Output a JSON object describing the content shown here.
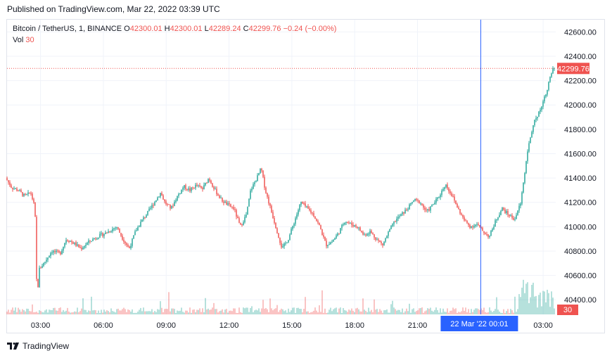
{
  "header": {
    "published": "Published on TradingView.com, Mar 22, 2022 03:39 UTC"
  },
  "legend": {
    "symbol": "Bitcoin / TetherUS, 1, BINANCE",
    "o_label": "O",
    "o_value": "42300.01",
    "h_label": "H",
    "h_value": "42300.01",
    "l_label": "L",
    "l_value": "42289.24",
    "c_label": "C",
    "c_value": "42299.76",
    "change": "−0.24 (−0.00%)",
    "vol_label": "Vol",
    "vol_value": "30"
  },
  "footer": {
    "brand": "TradingView",
    "logo_icon": "tradingview-logo-icon"
  },
  "colors": {
    "up": "#26a69a",
    "down": "#ef5350",
    "grid": "#f0f3fa",
    "crosshair": "#2962ff",
    "price_line": "#ef5350",
    "axis_text": "#131722"
  },
  "chart_data": {
    "type": "candlestick",
    "title": "Bitcoin / TetherUS, 1, BINANCE",
    "ylim": [
      40280,
      42700
    ],
    "y_ticks": [
      "42600.00",
      "42400.00",
      "42200.00",
      "42000.00",
      "41800.00",
      "41600.00",
      "41400.00",
      "41200.00",
      "41000.00",
      "40800.00",
      "40600.00",
      "40400.00"
    ],
    "x_ticks": [
      "03:00",
      "06:00",
      "09:00",
      "12:00",
      "15:00",
      "18:00",
      "21:00",
      "03:00"
    ],
    "x_range_hours": [
      1.4,
      27.6
    ],
    "crosshair_label": "22 Mar '22   00:01",
    "crosshair_hour": 24.02,
    "last_price": 42299.76,
    "last_price_label": "42299.76",
    "volume_last_label": "30",
    "grid": true,
    "price_path": [
      [
        1.4,
        41400
      ],
      [
        1.7,
        41320
      ],
      [
        2.0,
        41300
      ],
      [
        2.3,
        41250
      ],
      [
        2.6,
        41280
      ],
      [
        2.8,
        41150
      ],
      [
        2.9,
        40400
      ],
      [
        3.0,
        40650
      ],
      [
        3.3,
        40720
      ],
      [
        3.6,
        40800
      ],
      [
        4.0,
        40780
      ],
      [
        4.3,
        40900
      ],
      [
        4.7,
        40860
      ],
      [
        5.0,
        40820
      ],
      [
        5.4,
        40880
      ],
      [
        5.8,
        40920
      ],
      [
        6.2,
        40950
      ],
      [
        6.7,
        41000
      ],
      [
        7.0,
        40900
      ],
      [
        7.3,
        40820
      ],
      [
        7.6,
        40960
      ],
      [
        7.9,
        41050
      ],
      [
        8.2,
        41120
      ],
      [
        8.5,
        41200
      ],
      [
        8.8,
        41280
      ],
      [
        9.0,
        41200
      ],
      [
        9.3,
        41150
      ],
      [
        9.6,
        41250
      ],
      [
        9.9,
        41330
      ],
      [
        10.2,
        41300
      ],
      [
        10.5,
        41340
      ],
      [
        10.8,
        41310
      ],
      [
        11.1,
        41400
      ],
      [
        11.4,
        41300
      ],
      [
        11.7,
        41220
      ],
      [
        12.0,
        41180
      ],
      [
        12.3,
        41150
      ],
      [
        12.6,
        41000
      ],
      [
        12.9,
        41100
      ],
      [
        13.1,
        41300
      ],
      [
        13.4,
        41400
      ],
      [
        13.6,
        41480
      ],
      [
        13.8,
        41300
      ],
      [
        14.0,
        41180
      ],
      [
        14.3,
        41000
      ],
      [
        14.6,
        40820
      ],
      [
        14.9,
        40900
      ],
      [
        15.2,
        41050
      ],
      [
        15.5,
        41200
      ],
      [
        15.8,
        41150
      ],
      [
        16.1,
        41100
      ],
      [
        16.4,
        41000
      ],
      [
        16.7,
        40850
      ],
      [
        17.0,
        40880
      ],
      [
        17.3,
        40950
      ],
      [
        17.6,
        41050
      ],
      [
        17.9,
        41020
      ],
      [
        18.2,
        41000
      ],
      [
        18.5,
        40930
      ],
      [
        18.8,
        40960
      ],
      [
        19.1,
        40900
      ],
      [
        19.4,
        40850
      ],
      [
        19.7,
        40960
      ],
      [
        20.0,
        41050
      ],
      [
        20.3,
        41100
      ],
      [
        20.6,
        41150
      ],
      [
        20.9,
        41220
      ],
      [
        21.2,
        41200
      ],
      [
        21.5,
        41120
      ],
      [
        21.8,
        41180
      ],
      [
        22.1,
        41250
      ],
      [
        22.4,
        41350
      ],
      [
        22.7,
        41260
      ],
      [
        23.0,
        41150
      ],
      [
        23.3,
        41050
      ],
      [
        23.6,
        41000
      ],
      [
        23.9,
        41020
      ],
      [
        24.2,
        40960
      ],
      [
        24.5,
        40920
      ],
      [
        24.8,
        41050
      ],
      [
        25.1,
        41150
      ],
      [
        25.4,
        41100
      ],
      [
        25.7,
        41060
      ],
      [
        26.0,
        41200
      ],
      [
        26.3,
        41600
      ],
      [
        26.6,
        41850
      ],
      [
        26.9,
        41950
      ],
      [
        27.2,
        42100
      ],
      [
        27.5,
        42280
      ],
      [
        27.6,
        42299.76
      ]
    ]
  }
}
